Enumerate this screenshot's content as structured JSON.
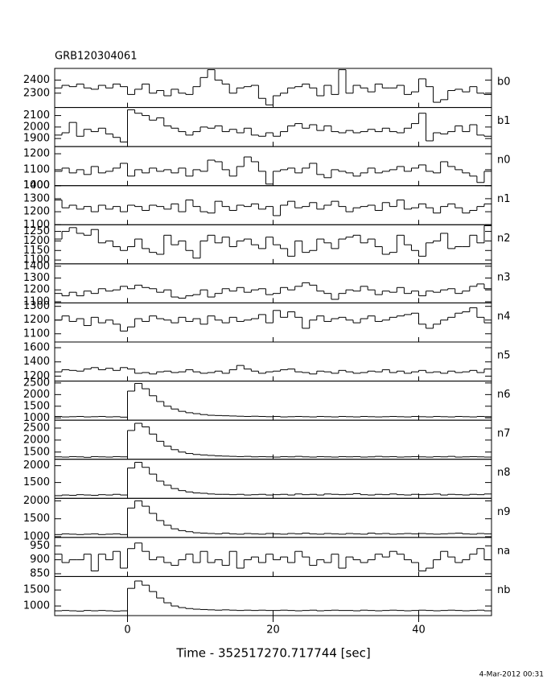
{
  "chart_data": {
    "type": "stacked-light-curves",
    "title": "GRB120304061",
    "xlabel": "Time - 352517270.717744 [sec]",
    "footer": "4-Mar-2012 00:31",
    "xlim": [
      -10,
      50
    ],
    "xticks": [
      0,
      20,
      40
    ],
    "bins": [
      -10,
      -9,
      -8,
      -7,
      -6,
      -5,
      -4,
      -3,
      -2,
      -1,
      0,
      1,
      2,
      3,
      4,
      5,
      6,
      7,
      8,
      9,
      10,
      11,
      12,
      13,
      14,
      15,
      16,
      17,
      18,
      19,
      20,
      21,
      22,
      23,
      24,
      25,
      26,
      27,
      28,
      29,
      30,
      31,
      32,
      33,
      34,
      35,
      36,
      37,
      38,
      39,
      40,
      41,
      42,
      43,
      44,
      45,
      46,
      47,
      48,
      49,
      50
    ],
    "panels": [
      {
        "name": "b0",
        "ylim": [
          2190,
          2490
        ],
        "yticks": [
          2300,
          2400
        ],
        "values": [
          2340,
          2360,
          2350,
          2370,
          2340,
          2330,
          2360,
          2340,
          2370,
          2350,
          2290,
          2330,
          2370,
          2300,
          2320,
          2280,
          2330,
          2300,
          2290,
          2350,
          2420,
          2480,
          2400,
          2370,
          2300,
          2340,
          2350,
          2360,
          2260,
          2210,
          2280,
          2300,
          2340,
          2350,
          2370,
          2340,
          2280,
          2360,
          2290,
          2480,
          2300,
          2360,
          2340,
          2310,
          2370,
          2340,
          2340,
          2360,
          2290,
          2310,
          2410,
          2350,
          2230,
          2250,
          2320,
          2330,
          2310,
          2350,
          2300,
          2290
        ]
      },
      {
        "name": "b1",
        "ylim": [
          1830,
          2170
        ],
        "yticks": [
          1900,
          2000,
          2100
        ],
        "values": [
          1930,
          1950,
          2040,
          1920,
          1980,
          1960,
          1990,
          1940,
          1910,
          1870,
          2150,
          2120,
          2100,
          2060,
          2080,
          2010,
          1990,
          1960,
          1930,
          1960,
          2000,
          1990,
          2010,
          1960,
          1980,
          1950,
          1990,
          1930,
          1920,
          1950,
          1920,
          1960,
          2010,
          2030,
          1990,
          2020,
          1970,
          2010,
          1960,
          1950,
          1970,
          1950,
          1960,
          1980,
          1960,
          1990,
          1960,
          1950,
          1990,
          2030,
          2120,
          1880,
          1950,
          1940,
          1960,
          2010,
          1960,
          2020,
          1930,
          1920
        ]
      },
      {
        "name": "n0",
        "ylim": [
          1000,
          1245
        ],
        "yticks": [
          1000,
          1100,
          1200
        ],
        "values": [
          1090,
          1110,
          1080,
          1100,
          1070,
          1120,
          1080,
          1090,
          1110,
          1140,
          1060,
          1100,
          1080,
          1110,
          1090,
          1100,
          1080,
          1110,
          1060,
          1100,
          1090,
          1160,
          1150,
          1100,
          1060,
          1120,
          1180,
          1150,
          1090,
          1010,
          1090,
          1100,
          1110,
          1080,
          1110,
          1140,
          1070,
          1050,
          1100,
          1090,
          1080,
          1060,
          1080,
          1110,
          1080,
          1090,
          1100,
          1120,
          1090,
          1110,
          1130,
          1090,
          1080,
          1150,
          1120,
          1100,
          1080,
          1060,
          1020,
          1090
        ]
      },
      {
        "name": "n1",
        "ylim": [
          1100,
          1400
        ],
        "yticks": [
          1100,
          1200,
          1300,
          1400
        ],
        "values": [
          1290,
          1230,
          1250,
          1220,
          1240,
          1200,
          1250,
          1220,
          1240,
          1200,
          1250,
          1240,
          1210,
          1250,
          1240,
          1220,
          1260,
          1200,
          1290,
          1240,
          1200,
          1190,
          1280,
          1240,
          1210,
          1250,
          1240,
          1260,
          1220,
          1240,
          1170,
          1250,
          1280,
          1230,
          1240,
          1270,
          1220,
          1250,
          1280,
          1240,
          1200,
          1230,
          1240,
          1250,
          1210,
          1270,
          1240,
          1290,
          1220,
          1230,
          1260,
          1230,
          1190,
          1240,
          1260,
          1230,
          1190,
          1210,
          1240,
          1260
        ]
      },
      {
        "name": "n2",
        "ylim": [
          1080,
          1285
        ],
        "yticks": [
          1100,
          1150,
          1200,
          1250
        ],
        "values": [
          1210,
          1250,
          1270,
          1240,
          1230,
          1260,
          1190,
          1200,
          1170,
          1150,
          1170,
          1210,
          1160,
          1140,
          1130,
          1230,
          1180,
          1200,
          1150,
          1110,
          1200,
          1230,
          1190,
          1220,
          1170,
          1200,
          1210,
          1180,
          1160,
          1220,
          1180,
          1160,
          1120,
          1200,
          1140,
          1150,
          1210,
          1190,
          1160,
          1210,
          1220,
          1230,
          1190,
          1210,
          1170,
          1130,
          1140,
          1230,
          1180,
          1150,
          1120,
          1190,
          1200,
          1240,
          1160,
          1170,
          1170,
          1230,
          1190,
          1280
        ]
      },
      {
        "name": "n3",
        "ylim": [
          1090,
          1420
        ],
        "yticks": [
          1100,
          1200,
          1300,
          1400
        ],
        "values": [
          1170,
          1150,
          1180,
          1150,
          1190,
          1170,
          1210,
          1190,
          1200,
          1230,
          1210,
          1240,
          1220,
          1210,
          1180,
          1200,
          1140,
          1130,
          1150,
          1160,
          1200,
          1140,
          1170,
          1210,
          1190,
          1220,
          1180,
          1200,
          1210,
          1160,
          1170,
          1220,
          1200,
          1230,
          1260,
          1240,
          1190,
          1170,
          1120,
          1170,
          1200,
          1190,
          1230,
          1200,
          1160,
          1190,
          1180,
          1220,
          1170,
          1190,
          1150,
          1190,
          1180,
          1200,
          1210,
          1170,
          1190,
          1230,
          1250,
          1210
        ]
      },
      {
        "name": "n4",
        "ylim": [
          1040,
          1325
        ],
        "yticks": [
          1100,
          1200,
          1300
        ],
        "values": [
          1200,
          1230,
          1190,
          1210,
          1160,
          1220,
          1180,
          1200,
          1170,
          1120,
          1150,
          1210,
          1190,
          1230,
          1210,
          1200,
          1180,
          1220,
          1190,
          1210,
          1170,
          1230,
          1200,
          1180,
          1220,
          1190,
          1200,
          1210,
          1240,
          1180,
          1270,
          1220,
          1260,
          1220,
          1140,
          1200,
          1230,
          1190,
          1210,
          1220,
          1200,
          1180,
          1210,
          1230,
          1190,
          1200,
          1220,
          1230,
          1240,
          1250,
          1170,
          1140,
          1170,
          1200,
          1220,
          1250,
          1260,
          1290,
          1220,
          1180
        ]
      },
      {
        "name": "n5",
        "ylim": [
          1130,
          1680
        ],
        "yticks": [
          1200,
          1400,
          1600
        ],
        "values": [
          1260,
          1290,
          1280,
          1270,
          1300,
          1320,
          1290,
          1310,
          1280,
          1320,
          1300,
          1240,
          1250,
          1230,
          1260,
          1270,
          1250,
          1260,
          1290,
          1260,
          1240,
          1250,
          1270,
          1240,
          1290,
          1350,
          1300,
          1270,
          1240,
          1260,
          1270,
          1290,
          1300,
          1260,
          1250,
          1230,
          1270,
          1260,
          1240,
          1280,
          1260,
          1240,
          1250,
          1270,
          1260,
          1290,
          1250,
          1270,
          1240,
          1260,
          1280,
          1250,
          1260,
          1240,
          1270,
          1250,
          1260,
          1280,
          1250,
          1300
        ]
      },
      {
        "name": "n6",
        "ylim": [
          900,
          2580
        ],
        "yticks": [
          1000,
          1500,
          2000,
          2500
        ],
        "values": [
          1060,
          1040,
          1050,
          1060,
          1040,
          1050,
          1060,
          1040,
          1050,
          1030,
          2150,
          2480,
          2250,
          1950,
          1700,
          1500,
          1380,
          1280,
          1220,
          1180,
          1140,
          1110,
          1100,
          1090,
          1080,
          1070,
          1060,
          1070,
          1060,
          1050,
          1060,
          1040,
          1050,
          1060,
          1050,
          1040,
          1060,
          1050,
          1040,
          1060,
          1050,
          1040,
          1060,
          1050,
          1040,
          1050,
          1060,
          1050,
          1040,
          1060,
          1050,
          1040,
          1060,
          1050,
          1040,
          1060,
          1050,
          1040,
          1060,
          1050
        ]
      },
      {
        "name": "n7",
        "ylim": [
          1200,
          2830
        ],
        "yticks": [
          1500,
          2000,
          2500
        ],
        "values": [
          1300,
          1290,
          1310,
          1300,
          1280,
          1310,
          1300,
          1290,
          1310,
          1300,
          2400,
          2700,
          2550,
          2250,
          1950,
          1750,
          1600,
          1500,
          1440,
          1400,
          1380,
          1360,
          1340,
          1330,
          1320,
          1310,
          1320,
          1300,
          1310,
          1300,
          1290,
          1310,
          1300,
          1320,
          1300,
          1290,
          1310,
          1300,
          1290,
          1310,
          1300,
          1310,
          1290,
          1300,
          1320,
          1300,
          1310,
          1290,
          1300,
          1310,
          1300,
          1290,
          1310,
          1300,
          1320,
          1290,
          1300,
          1310,
          1300,
          1290
        ]
      },
      {
        "name": "n8",
        "ylim": [
          1030,
          2190
        ],
        "yticks": [
          1500,
          2000
        ],
        "values": [
          1110,
          1130,
          1120,
          1140,
          1130,
          1120,
          1140,
          1130,
          1150,
          1130,
          1930,
          2100,
          1950,
          1750,
          1540,
          1420,
          1320,
          1260,
          1220,
          1190,
          1180,
          1160,
          1150,
          1150,
          1140,
          1150,
          1130,
          1140,
          1150,
          1130,
          1140,
          1150,
          1130,
          1160,
          1140,
          1150,
          1130,
          1160,
          1150,
          1140,
          1150,
          1170,
          1140,
          1130,
          1150,
          1140,
          1160,
          1140,
          1130,
          1150,
          1140,
          1150,
          1160,
          1130,
          1150,
          1140,
          1130,
          1150,
          1140,
          1160
        ]
      },
      {
        "name": "n9",
        "ylim": [
          980,
          2070
        ],
        "yticks": [
          1000,
          1500,
          2000
        ],
        "values": [
          1060,
          1080,
          1070,
          1060,
          1070,
          1080,
          1060,
          1070,
          1080,
          1060,
          1800,
          2000,
          1850,
          1650,
          1450,
          1320,
          1220,
          1170,
          1140,
          1110,
          1100,
          1090,
          1080,
          1100,
          1080,
          1070,
          1090,
          1080,
          1070,
          1090,
          1080,
          1070,
          1090,
          1080,
          1100,
          1080,
          1070,
          1090,
          1080,
          1070,
          1090,
          1080,
          1070,
          1100,
          1080,
          1090,
          1070,
          1080,
          1090,
          1080,
          1090,
          1080,
          1070,
          1080,
          1090,
          1100,
          1080,
          1070,
          1090,
          1080
        ]
      },
      {
        "name": "na",
        "ylim": [
          840,
          980
        ],
        "yticks": [
          850,
          900,
          950
        ],
        "values": [
          920,
          890,
          900,
          900,
          920,
          860,
          920,
          900,
          930,
          870,
          940,
          960,
          930,
          900,
          910,
          890,
          880,
          900,
          920,
          890,
          930,
          890,
          900,
          880,
          930,
          870,
          900,
          910,
          890,
          920,
          900,
          910,
          890,
          930,
          910,
          880,
          900,
          890,
          920,
          870,
          910,
          900,
          890,
          900,
          920,
          910,
          930,
          920,
          900,
          890,
          860,
          870,
          900,
          930,
          910,
          890,
          900,
          920,
          940,
          900
        ]
      },
      {
        "name": "nb",
        "ylim": [
          700,
          1920
        ],
        "yticks": [
          1000,
          1500
        ],
        "values": [
          850,
          860,
          850,
          840,
          860,
          850,
          860,
          850,
          840,
          850,
          1550,
          1780,
          1650,
          1450,
          1250,
          1100,
          1000,
          950,
          920,
          900,
          890,
          880,
          870,
          880,
          870,
          860,
          870,
          860,
          870,
          860,
          860,
          870,
          860,
          850,
          860,
          870,
          850,
          860,
          870,
          860,
          860,
          850,
          870,
          860,
          850,
          860,
          870,
          860,
          850,
          860,
          870,
          860,
          850,
          860,
          870,
          860,
          850,
          860,
          870,
          850
        ]
      }
    ]
  }
}
